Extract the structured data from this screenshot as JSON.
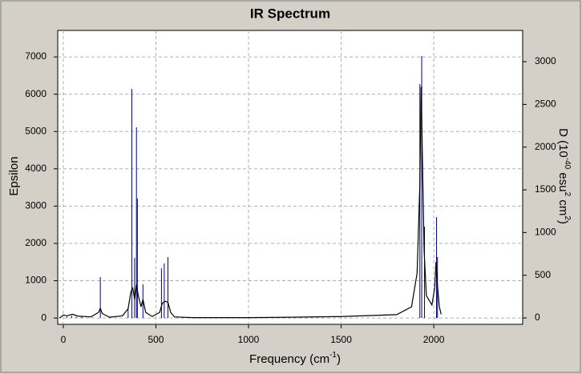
{
  "chart_data": {
    "type": "line",
    "title": "IR Spectrum",
    "xlabel_parts": [
      {
        "text": "Frequency (cm"
      },
      {
        "text": "-1",
        "sup": true
      },
      {
        "text": ")"
      }
    ],
    "ylabel": "Epsilon",
    "y2label_parts": [
      {
        "text": "D (10"
      },
      {
        "text": "-40",
        "sup": true
      },
      {
        "text": " esu"
      },
      {
        "text": "2",
        "sup": true
      },
      {
        "text": " cm"
      },
      {
        "text": "2",
        "sup": true
      },
      {
        "text": ")"
      }
    ],
    "xlim": [
      -30,
      2480
    ],
    "xticks": [
      0,
      500,
      1000,
      1500,
      2000
    ],
    "ylim": [
      -170,
      7710
    ],
    "yticks": [
      0,
      1000,
      2000,
      3000,
      4000,
      5000,
      6000,
      7000
    ],
    "y2lim": [
      -75,
      3366
    ],
    "y2ticks": [
      0,
      500,
      1000,
      1500,
      2000,
      2500,
      3000
    ],
    "grid": true,
    "series": [
      {
        "style": "stick",
        "axis": "y2",
        "color": "#000080",
        "x": [
          20,
          45,
          70,
          100,
          200,
          350,
          370,
          385,
          395,
          400,
          430,
          530,
          545,
          565,
          1925,
          1935,
          1950,
          2015,
          2020
        ],
        "values": [
          15,
          25,
          12,
          20,
          478,
          113,
          2681,
          703,
          2231,
          1397,
          394,
          581,
          638,
          713,
          2738,
          3066,
          1069,
          1181,
          713
        ]
      },
      {
        "style": "line",
        "color": "#000000",
        "x": [
          -20,
          0,
          20,
          50,
          80,
          150,
          190,
          200,
          210,
          250,
          320,
          350,
          365,
          375,
          385,
          395,
          405,
          420,
          430,
          445,
          480,
          520,
          535,
          550,
          565,
          580,
          600,
          700,
          1000,
          1230,
          1500,
          1800,
          1880,
          1910,
          1925,
          1932,
          1938,
          1948,
          1960,
          1990,
          2005,
          2012,
          2018,
          2030,
          2040
        ],
        "values": [
          0,
          80,
          60,
          100,
          50,
          30,
          150,
          260,
          120,
          20,
          60,
          250,
          700,
          800,
          500,
          900,
          600,
          300,
          500,
          150,
          40,
          150,
          400,
          450,
          420,
          150,
          30,
          10,
          10,
          20,
          40,
          90,
          300,
          1200,
          3600,
          6200,
          4500,
          1800,
          600,
          350,
          800,
          1500,
          1000,
          300,
          100
        ]
      }
    ]
  }
}
